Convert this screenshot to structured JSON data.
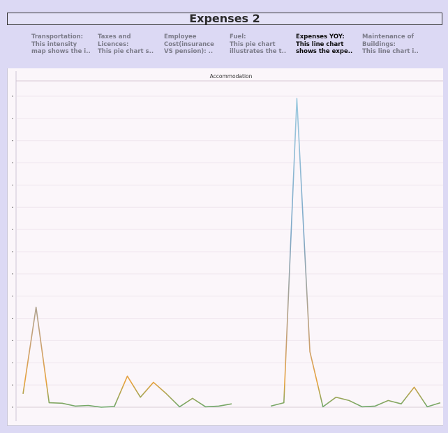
{
  "page_title": "Expenses 2",
  "tabs": [
    {
      "lines": [
        "Transportation:",
        "This intensity",
        "map shows the i.."
      ],
      "active": false
    },
    {
      "lines": [
        "Taxes and",
        "Licences:",
        "This pie chart s.."
      ],
      "active": false
    },
    {
      "lines": [
        "Employee",
        "Cost(insurance",
        "VS pension):   .."
      ],
      "active": false
    },
    {
      "lines": [
        "Fuel:",
        "This pie chart",
        "illustrates the t.."
      ],
      "active": false
    },
    {
      "lines": [
        "Expenses YOY:",
        "This line chart",
        "shows the expe.."
      ],
      "active": true
    },
    {
      "lines": [
        "Maintenance of",
        "Buildings:",
        "This line chart i.."
      ],
      "active": false
    }
  ],
  "chart_data": {
    "type": "line",
    "title": "Accommodation",
    "xlabel": "",
    "ylabel": "",
    "ylim": [
      0,
      14
    ],
    "y_tick_count": 15,
    "grid": true,
    "legend": "none",
    "segments": [
      [
        0.6,
        4.5,
        0.2,
        0.18,
        0.05,
        0.08,
        0.0,
        0.03,
        1.4,
        0.45,
        1.12,
        0.6,
        0.02,
        0.4,
        0.02,
        0.05,
        0.15
      ],
      [
        0.05,
        0.2,
        13.9,
        2.5,
        0.02,
        0.45,
        0.3,
        0.02,
        0.05,
        0.3,
        0.15,
        0.9,
        0.02,
        0.2
      ]
    ],
    "gap_points": 2
  }
}
